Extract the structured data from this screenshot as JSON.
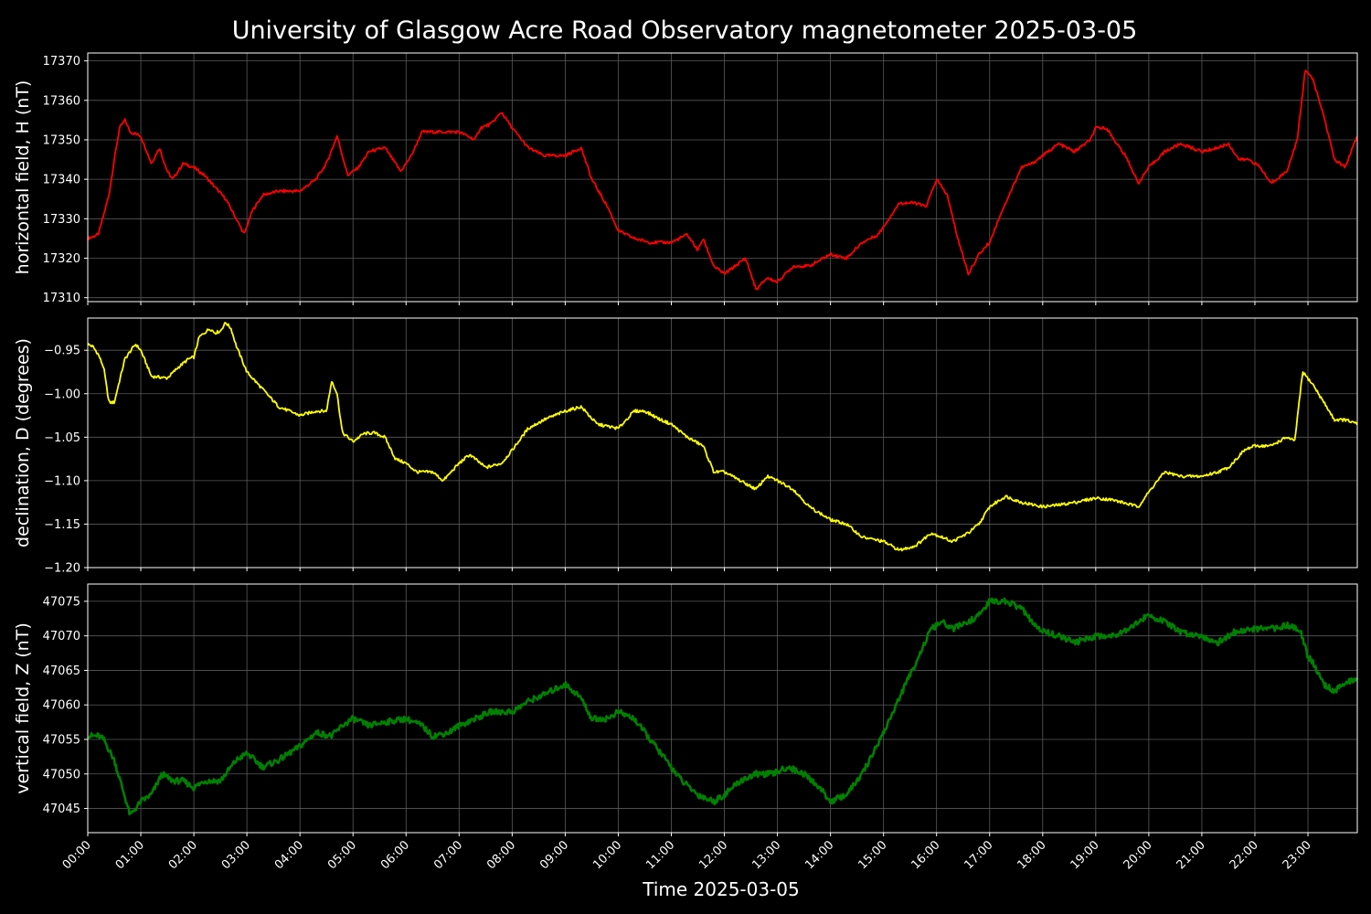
{
  "chart_data": {
    "title": "University of Glasgow Acre Road Observatory magnetometer 2025-03-05",
    "xlabel": "Time 2025-03-05",
    "x_ticks": [
      "00:00",
      "01:00",
      "02:00",
      "03:00",
      "04:00",
      "05:00",
      "06:00",
      "07:00",
      "08:00",
      "09:00",
      "10:00",
      "11:00",
      "12:00",
      "13:00",
      "14:00",
      "15:00",
      "16:00",
      "17:00",
      "18:00",
      "19:00",
      "20:00",
      "21:00",
      "22:00",
      "23:00"
    ],
    "xlim_hours": [
      0,
      23.93
    ],
    "grid": true,
    "panels": [
      {
        "type": "line",
        "ylabel": "horizontal field, H (nT)",
        "color": "#ff0000",
        "ylim": [
          17309,
          17372
        ],
        "yticks": [
          17310,
          17320,
          17330,
          17340,
          17350,
          17360,
          17370
        ],
        "ytick_labels": [
          "17310",
          "17320",
          "17330",
          "17340",
          "17350",
          "17360",
          "17370"
        ],
        "x": [
          0,
          0.2,
          0.4,
          0.5,
          0.6,
          0.7,
          0.8,
          1.0,
          1.2,
          1.35,
          1.5,
          1.6,
          1.8,
          2.0,
          2.2,
          2.4,
          2.6,
          2.8,
          2.95,
          3.1,
          3.3,
          3.6,
          4.0,
          4.3,
          4.5,
          4.7,
          4.9,
          5.1,
          5.3,
          5.6,
          5.9,
          6.1,
          6.3,
          6.5,
          7.0,
          7.3,
          7.4,
          7.6,
          7.8,
          8.0,
          8.3,
          8.6,
          9.0,
          9.3,
          9.5,
          9.8,
          10.0,
          10.3,
          10.6,
          11.0,
          11.3,
          11.5,
          11.6,
          11.8,
          12.0,
          12.2,
          12.4,
          12.6,
          12.8,
          13.0,
          13.3,
          13.6,
          14.0,
          14.3,
          14.6,
          14.9,
          15.1,
          15.3,
          15.6,
          15.8,
          16.0,
          16.2,
          16.4,
          16.6,
          16.8,
          17.0,
          17.2,
          17.4,
          17.6,
          17.8,
          18.0,
          18.3,
          18.6,
          18.9,
          19.0,
          19.2,
          19.4,
          19.6,
          19.8,
          20.0,
          20.3,
          20.6,
          21.0,
          21.3,
          21.5,
          21.7,
          21.9,
          22.1,
          22.3,
          22.6,
          22.8,
          22.95,
          23.1,
          23.3,
          23.5,
          23.7,
          23.93
        ],
        "y": [
          17325,
          17326,
          17336,
          17345,
          17353,
          17355,
          17352,
          17351,
          17344,
          17348,
          17342,
          17340,
          17344,
          17343,
          17341,
          17338,
          17335,
          17330,
          17326,
          17332,
          17336,
          17337,
          17337,
          17340,
          17344,
          17351,
          17341,
          17343,
          17347,
          17348,
          17342,
          17346,
          17352,
          17352,
          17352,
          17350,
          17353,
          17354,
          17357,
          17353,
          17348,
          17346,
          17346,
          17348,
          17340,
          17333,
          17327,
          17325,
          17324,
          17324,
          17326,
          17322,
          17325,
          17318,
          17316,
          17318,
          17320,
          17312,
          17315,
          17314,
          17318,
          17318,
          17321,
          17320,
          17324,
          17326,
          17330,
          17334,
          17334,
          17333,
          17340,
          17336,
          17325,
          17316,
          17321,
          17324,
          17331,
          17337,
          17343,
          17344,
          17346,
          17349,
          17347,
          17350,
          17353,
          17353,
          17349,
          17345,
          17339,
          17343,
          17347,
          17349,
          17347,
          17348,
          17349,
          17345,
          17345,
          17343,
          17339,
          17342,
          17350,
          17368,
          17365,
          17356,
          17345,
          17343,
          17351
        ]
      },
      {
        "type": "line",
        "ylabel": "declination, D (degrees)",
        "color": "#ffff00",
        "ylim": [
          -1.2,
          -0.913
        ],
        "yticks": [
          -1.2,
          -1.15,
          -1.1,
          -1.05,
          -1.0,
          -0.95
        ],
        "ytick_labels": [
          "−1.20",
          "−1.15",
          "−1.10",
          "−1.05",
          "−1.00",
          "−0.95"
        ],
        "x": [
          0,
          0.1,
          0.2,
          0.3,
          0.4,
          0.5,
          0.7,
          0.9,
          1.0,
          1.2,
          1.5,
          1.7,
          1.9,
          2.0,
          2.1,
          2.3,
          2.4,
          2.5,
          2.6,
          2.7,
          2.8,
          3.0,
          3.3,
          3.6,
          4.0,
          4.3,
          4.5,
          4.6,
          4.7,
          4.8,
          5.0,
          5.2,
          5.4,
          5.6,
          5.8,
          6.0,
          6.2,
          6.5,
          6.7,
          7.0,
          7.2,
          7.5,
          7.8,
          8.0,
          8.3,
          8.6,
          9.0,
          9.3,
          9.6,
          10.0,
          10.3,
          10.5,
          10.8,
          11.0,
          11.3,
          11.6,
          11.8,
          12.0,
          12.3,
          12.6,
          12.8,
          13.0,
          13.3,
          13.6,
          14.0,
          14.3,
          14.6,
          15.0,
          15.3,
          15.6,
          15.9,
          16.1,
          16.3,
          16.6,
          16.8,
          17.0,
          17.3,
          17.6,
          18.0,
          18.3,
          18.6,
          19.0,
          19.3,
          19.5,
          19.8,
          20.1,
          20.3,
          20.6,
          21.0,
          21.3,
          21.5,
          21.8,
          22.0,
          22.3,
          22.6,
          22.75,
          22.9,
          23.1,
          23.3,
          23.5,
          23.7,
          23.93
        ],
        "y": [
          -0.943,
          -0.946,
          -0.955,
          -0.97,
          -1.01,
          -1.01,
          -0.96,
          -0.943,
          -0.95,
          -0.98,
          -0.982,
          -0.97,
          -0.96,
          -0.958,
          -0.935,
          -0.925,
          -0.93,
          -0.928,
          -0.918,
          -0.925,
          -0.945,
          -0.975,
          -0.995,
          -1.015,
          -1.025,
          -1.02,
          -1.02,
          -0.985,
          -1.0,
          -1.045,
          -1.055,
          -1.046,
          -1.045,
          -1.05,
          -1.075,
          -1.08,
          -1.09,
          -1.09,
          -1.1,
          -1.08,
          -1.07,
          -1.085,
          -1.08,
          -1.065,
          -1.04,
          -1.03,
          -1.02,
          -1.015,
          -1.035,
          -1.04,
          -1.02,
          -1.02,
          -1.03,
          -1.035,
          -1.05,
          -1.06,
          -1.09,
          -1.09,
          -1.1,
          -1.11,
          -1.095,
          -1.1,
          -1.11,
          -1.13,
          -1.145,
          -1.15,
          -1.165,
          -1.17,
          -1.18,
          -1.175,
          -1.16,
          -1.165,
          -1.17,
          -1.16,
          -1.15,
          -1.13,
          -1.118,
          -1.125,
          -1.13,
          -1.128,
          -1.125,
          -1.12,
          -1.122,
          -1.125,
          -1.13,
          -1.105,
          -1.09,
          -1.095,
          -1.095,
          -1.09,
          -1.085,
          -1.065,
          -1.06,
          -1.06,
          -1.05,
          -1.055,
          -0.975,
          -0.99,
          -1.01,
          -1.03,
          -1.03,
          -1.035
        ]
      },
      {
        "type": "line",
        "ylabel": "vertical field, Z (nT)",
        "color": "#008000",
        "ylim": [
          47041.5,
          47077.5
        ],
        "yticks": [
          47045,
          47050,
          47055,
          47060,
          47065,
          47070,
          47075
        ],
        "ytick_labels": [
          "47045",
          "47050",
          "47055",
          "47060",
          "47065",
          "47070",
          "47075"
        ],
        "x": [
          0,
          0.2,
          0.3,
          0.5,
          0.8,
          1.0,
          1.2,
          1.4,
          1.6,
          1.8,
          2.0,
          2.2,
          2.5,
          2.8,
          3.0,
          3.3,
          3.6,
          4.0,
          4.3,
          4.6,
          4.8,
          5.0,
          5.3,
          5.6,
          6.0,
          6.3,
          6.5,
          6.8,
          7.0,
          7.3,
          7.6,
          8.0,
          8.3,
          8.6,
          9.0,
          9.3,
          9.5,
          9.8,
          10.0,
          10.3,
          10.6,
          10.9,
          11.2,
          11.5,
          11.8,
          12.0,
          12.3,
          12.6,
          12.9,
          13.2,
          13.5,
          13.8,
          14.0,
          14.3,
          14.6,
          15.0,
          15.3,
          15.6,
          15.9,
          16.1,
          16.3,
          16.6,
          16.8,
          17.0,
          17.3,
          17.6,
          17.9,
          18.3,
          18.6,
          19.0,
          19.3,
          19.6,
          20.0,
          20.3,
          20.6,
          21.0,
          21.3,
          21.6,
          22.0,
          22.3,
          22.6,
          22.85,
          23.0,
          23.1,
          23.3,
          23.5,
          23.7,
          23.93
        ],
        "y": [
          47055.5,
          47055.5,
          47055,
          47052,
          47044,
          47046,
          47047,
          47050,
          47049,
          47049,
          47048,
          47049,
          47049,
          47052,
          47053,
          47051,
          47052,
          47054,
          47056,
          47055.5,
          47057,
          47058,
          47057,
          47057.5,
          47058,
          47057,
          47055.5,
          47056,
          47057,
          47058,
          47059,
          47059,
          47060.5,
          47061.5,
          47063,
          47061,
          47058,
          47058,
          47059,
          47058,
          47055,
          47052,
          47049,
          47047,
          47046,
          47047,
          47049,
          47050,
          47050,
          47051,
          47050,
          47048,
          47046,
          47047,
          47050,
          47056,
          47061,
          47066,
          47071,
          47072,
          47071,
          47072,
          47073,
          47075,
          47075,
          47074,
          47071,
          47070,
          47069,
          47070,
          47070,
          47071,
          47073,
          47072,
          47070.5,
          47070,
          47069,
          47070.5,
          47071,
          47071,
          47071.5,
          47071,
          47067,
          47066,
          47063,
          47062,
          47063,
          47064
        ]
      }
    ]
  }
}
